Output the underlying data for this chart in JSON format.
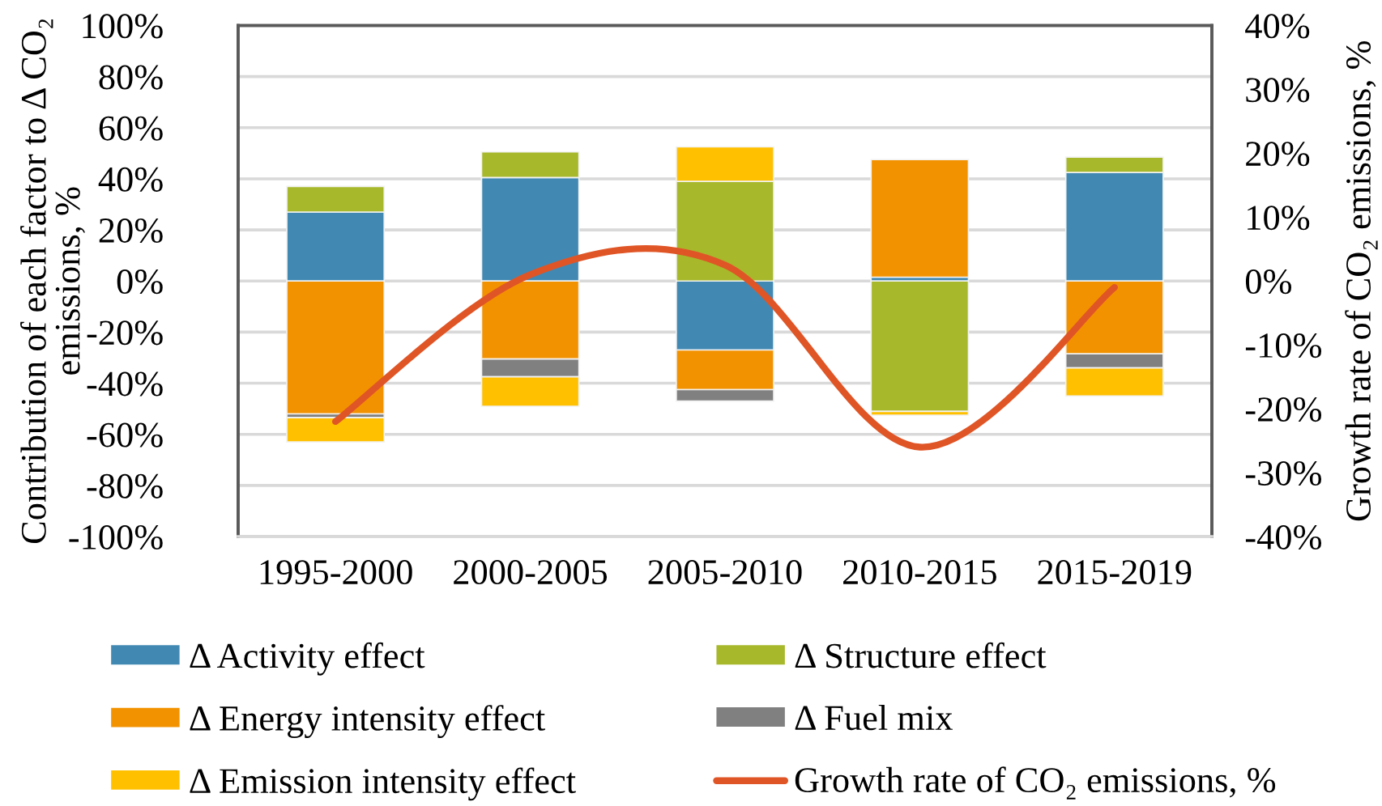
{
  "chart_data": {
    "type": "bar",
    "stacked": true,
    "categories": [
      "1995-2000",
      "2000-2005",
      "2005-2010",
      "2010-2015",
      "2015-2019"
    ],
    "series": [
      {
        "name": "Δ Activity effect",
        "color": "#4189B3",
        "values": [
          27,
          40.5,
          -27,
          1.5,
          42.5
        ]
      },
      {
        "name": "Δ Structure effect",
        "color": "#A7B82B",
        "values": [
          10,
          10,
          39,
          -51,
          6
        ]
      },
      {
        "name": "Δ Energy intensity effect",
        "color": "#F39200",
        "values": [
          -52,
          -30.5,
          -15.5,
          46,
          -28.5
        ]
      },
      {
        "name": "Δ Fuel mix",
        "color": "#808080",
        "values": [
          -1.5,
          -7,
          -4.5,
          null,
          -5.5
        ]
      },
      {
        "name": "Δ Emission intensity effect",
        "color": "#FFC000",
        "values": [
          -9.5,
          -11.5,
          13.5,
          -1.5,
          -11
        ]
      },
      {
        "name": "Growth rate of CO₂ emissions, %",
        "type": "line",
        "axis": "y2",
        "color": "#E05526",
        "values": [
          -22,
          1,
          2.5,
          -26,
          -1
        ]
      }
    ],
    "ylim": [
      -100,
      100
    ],
    "yticks": [
      {
        "value": -100,
        "label": "-100%"
      },
      {
        "value": -80,
        "label": "-80%"
      },
      {
        "value": -60,
        "label": "-60%"
      },
      {
        "value": -40,
        "label": "-40%"
      },
      {
        "value": -20,
        "label": "-20%"
      },
      {
        "value": 0,
        "label": "0%"
      },
      {
        "value": 20,
        "label": "20%"
      },
      {
        "value": 40,
        "label": "40%"
      },
      {
        "value": 60,
        "label": "60%"
      },
      {
        "value": 80,
        "label": "80%"
      },
      {
        "value": 100,
        "label": "100%"
      }
    ],
    "y2lim": [
      -40,
      40
    ],
    "y2ticks": [
      {
        "value": -40,
        "label": "-40%"
      },
      {
        "value": -30,
        "label": "-30%"
      },
      {
        "value": -20,
        "label": "-20%"
      },
      {
        "value": -10,
        "label": "-10%"
      },
      {
        "value": 0,
        "label": "0%"
      },
      {
        "value": 10,
        "label": "10%"
      },
      {
        "value": 20,
        "label": "20%"
      },
      {
        "value": 30,
        "label": "30%"
      },
      {
        "value": 40,
        "label": "40%"
      }
    ],
    "ylabel": "Contribution of each factor to Δ CO₂\nemissions, %",
    "y2label": "Growth rate of CO₂ emissions, %",
    "grid": "y",
    "legend": "bottom"
  }
}
